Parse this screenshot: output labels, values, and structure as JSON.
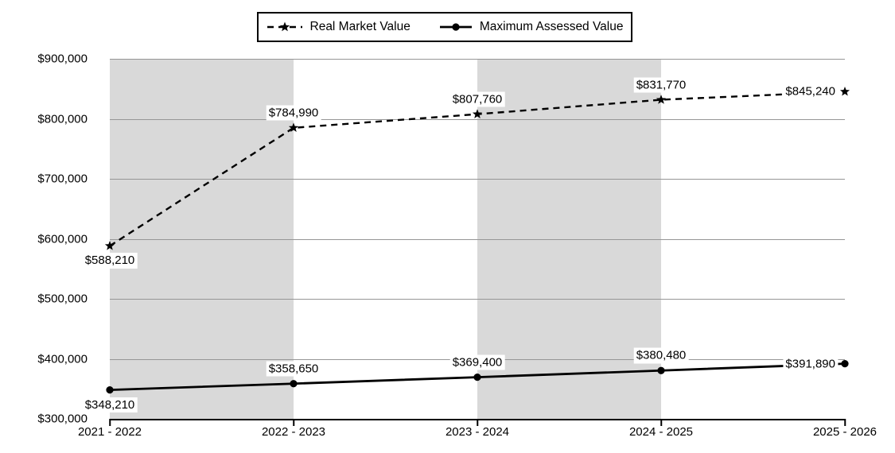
{
  "legend": {
    "items": [
      {
        "label": "Real Market Value",
        "marker": "star-on-dashed-line"
      },
      {
        "label": "Maximum Assessed Value",
        "marker": "circle-on-solid-line"
      }
    ]
  },
  "chart_data": {
    "type": "line",
    "categories": [
      "2021 - 2022",
      "2022 - 2023",
      "2023 - 2024",
      "2024 - 2025",
      "2025 - 2026"
    ],
    "series": [
      {
        "name": "Real Market Value",
        "line_style": "dashed",
        "marker": "star",
        "values": [
          588210,
          784990,
          807760,
          831770,
          845240
        ],
        "labels": [
          "$588,210",
          "$784,990",
          "$807,760",
          "$831,770",
          "$845,240"
        ],
        "label_positions": [
          "below",
          "above",
          "above",
          "above",
          "left"
        ]
      },
      {
        "name": "Maximum Assessed Value",
        "line_style": "solid",
        "marker": "circle",
        "values": [
          348210,
          358650,
          369400,
          380480,
          391890
        ],
        "labels": [
          "$348,210",
          "$358,650",
          "$369,400",
          "$380,480",
          "$391,890"
        ],
        "label_positions": [
          "below",
          "above",
          "above",
          "above",
          "left"
        ]
      }
    ],
    "ylim": [
      300000,
      900000
    ],
    "ytick_step": 100000,
    "ytick_labels": [
      "$300,000",
      "$400,000",
      "$500,000",
      "$600,000",
      "$700,000",
      "$800,000",
      "$900,000"
    ],
    "grid": true,
    "legend_position": "top-center",
    "shaded_column_intervals": [
      0,
      2
    ],
    "colors": {
      "series_line": "#000000",
      "band": "#d9d9d9",
      "gridline": "#969696",
      "axis": "#000000",
      "label_background": "#ffffff",
      "text": "#000000"
    }
  }
}
